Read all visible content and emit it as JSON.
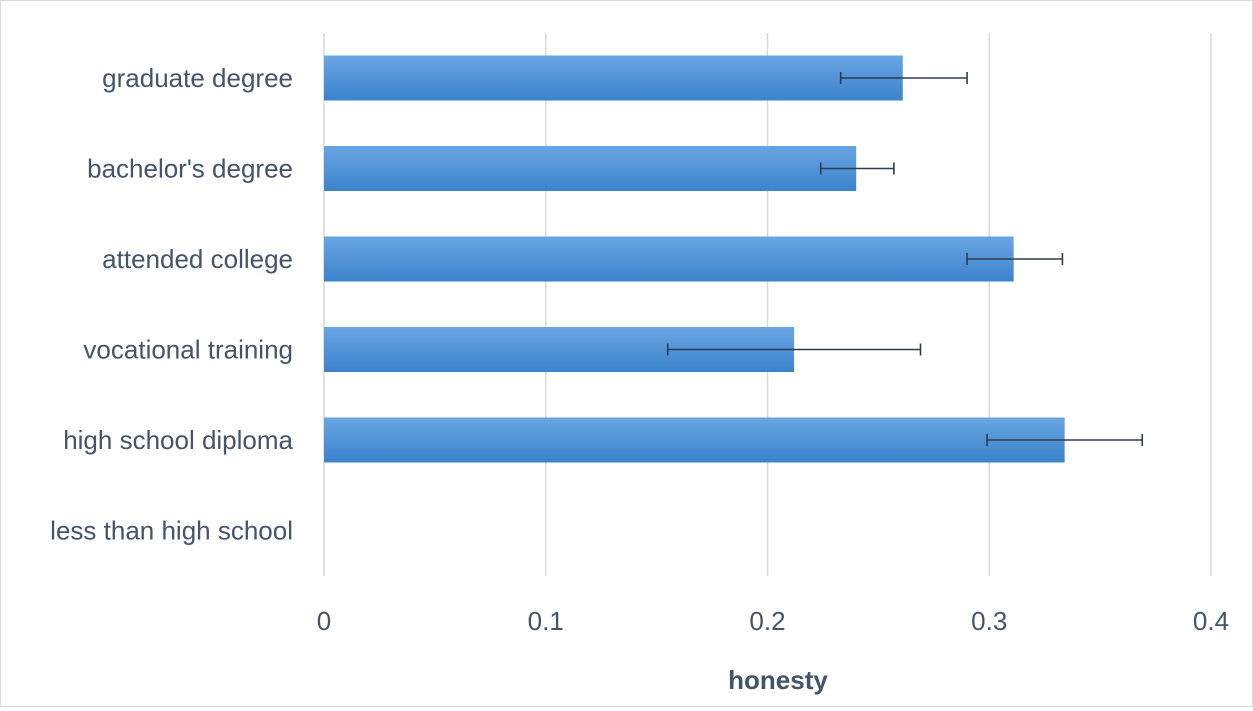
{
  "chart_data": {
    "type": "bar",
    "orientation": "horizontal",
    "categories": [
      "graduate degree",
      "bachelor's degree",
      "attended college",
      "vocational training",
      "high school diploma",
      "less than high school"
    ],
    "values": [
      0.261,
      0.24,
      0.311,
      0.212,
      0.334,
      null
    ],
    "error": [
      [
        0.233,
        0.29
      ],
      [
        0.224,
        0.257
      ],
      [
        0.29,
        0.333
      ],
      [
        0.155,
        0.269
      ],
      [
        0.299,
        0.369
      ],
      null
    ],
    "xlabel": "honesty",
    "ylabel": "",
    "xlim": [
      0,
      0.4
    ],
    "xticks": [
      "0",
      "0.1",
      "0.2",
      "0.3",
      "0.4"
    ],
    "xtick_values": [
      0,
      0.1,
      0.2,
      0.3,
      0.4
    ],
    "grid": "vertical",
    "legend": "none",
    "colors": {
      "bar_top": "#6aa5e3",
      "bar_bottom": "#3b83cc",
      "error_bar": "#2f3b4f",
      "text": "#44546a"
    }
  }
}
